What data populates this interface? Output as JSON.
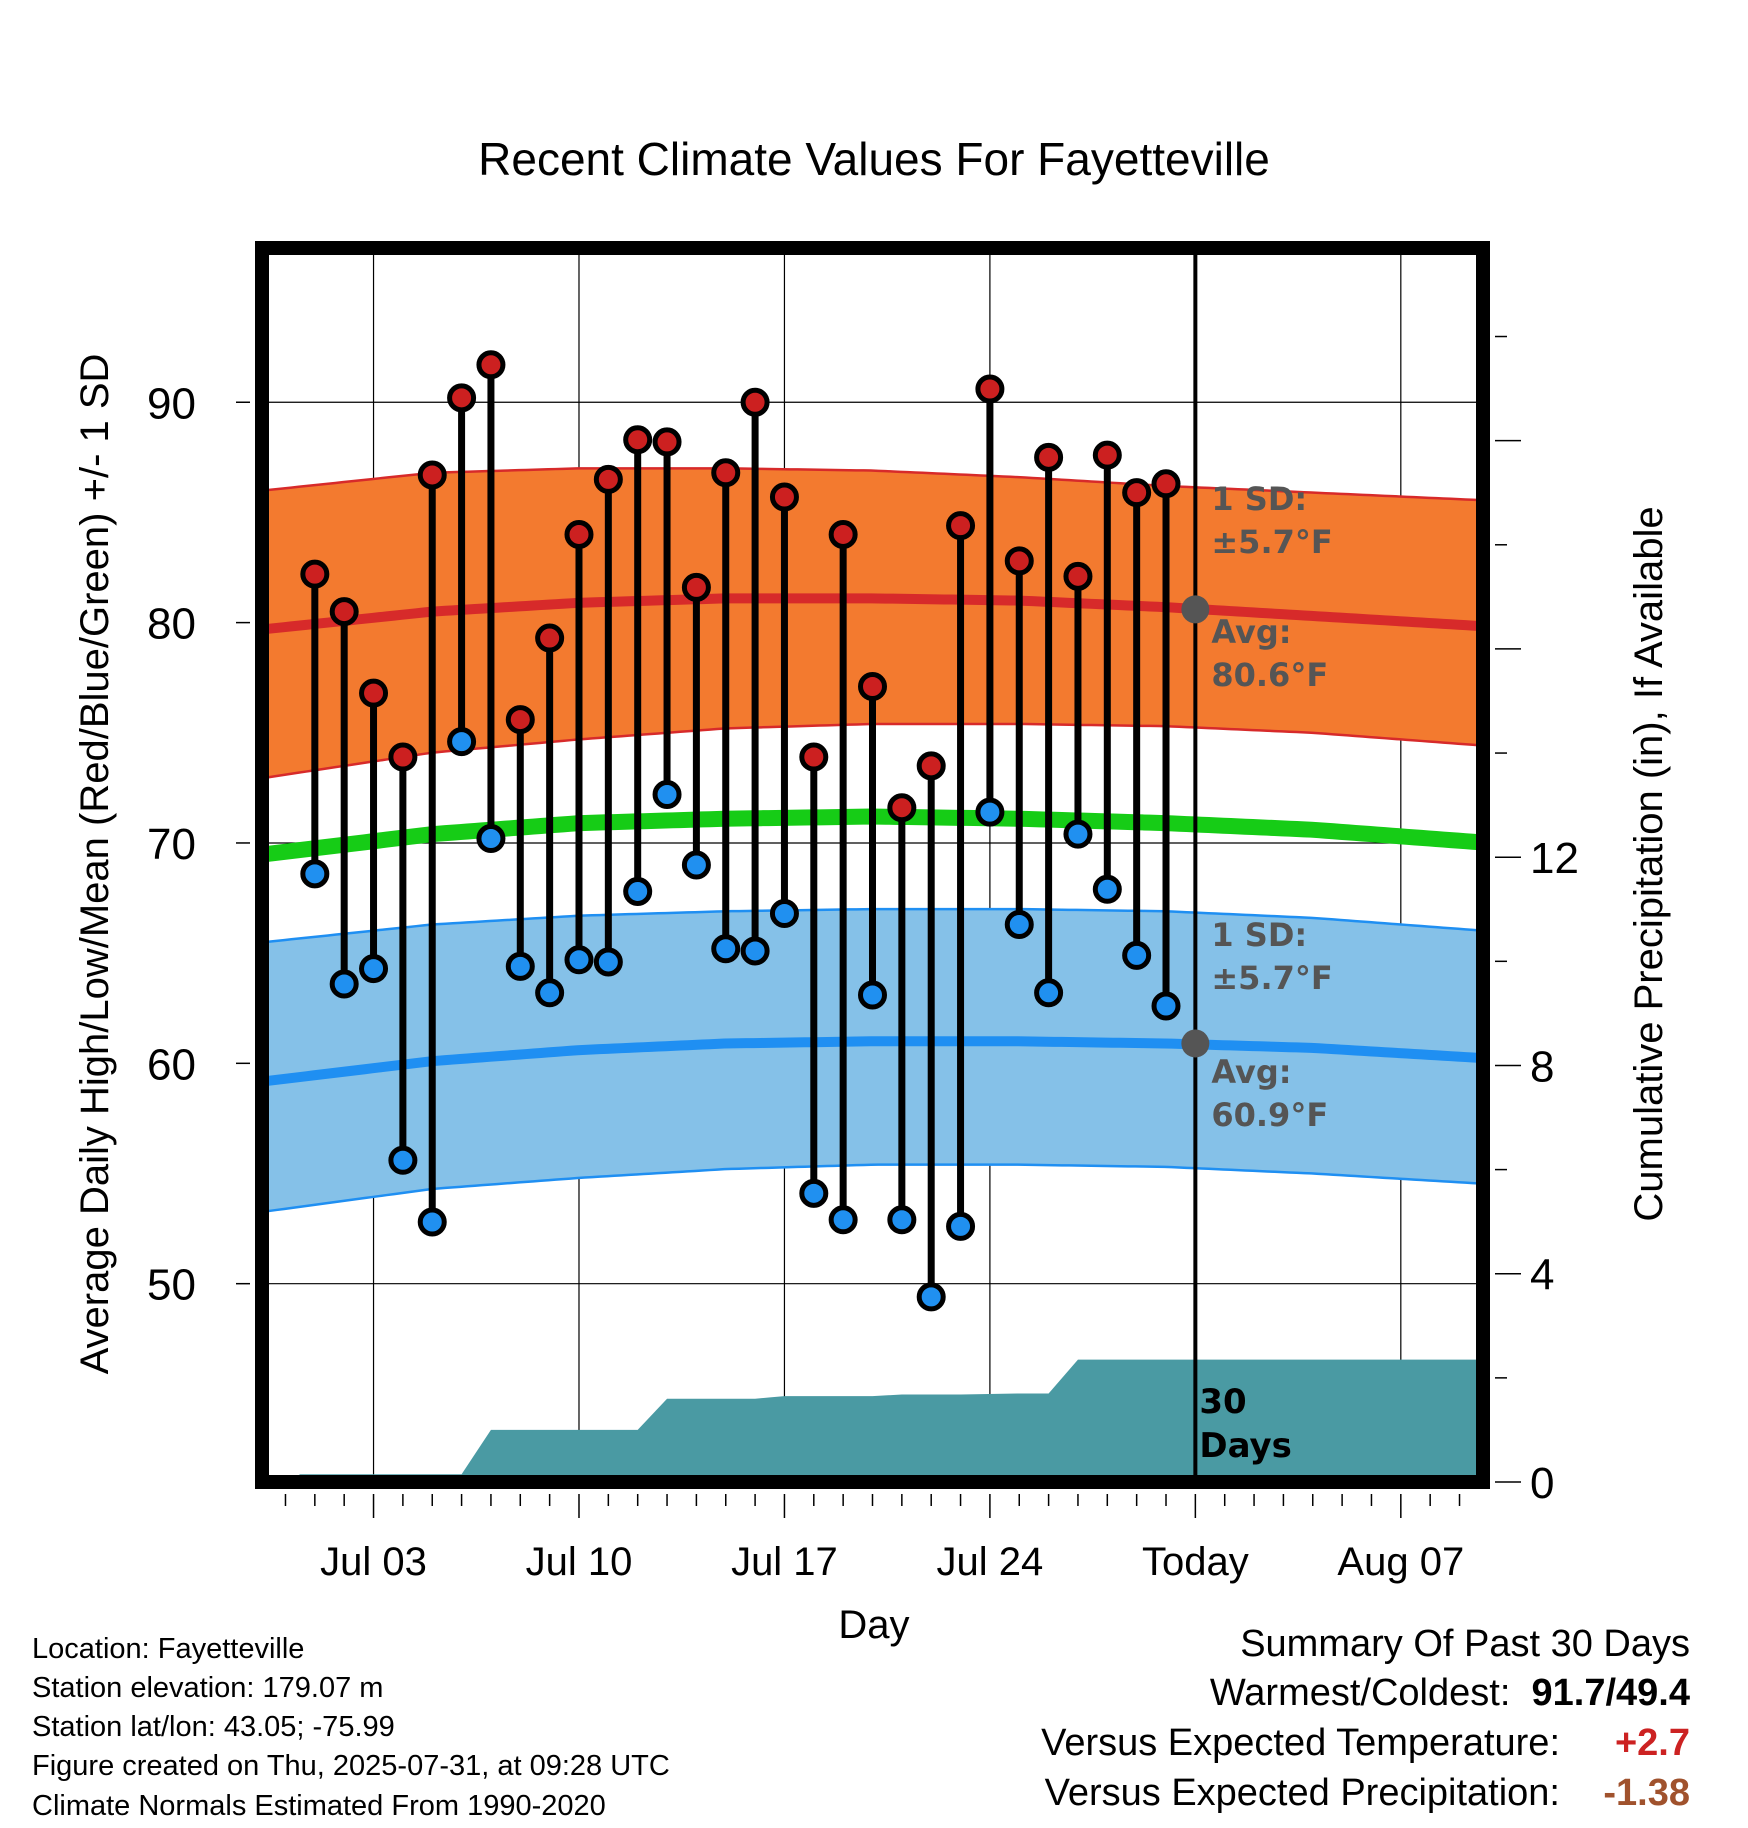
{
  "chart_data": {
    "type": "line",
    "title": "Recent Climate Values For Fayetteville",
    "xlabel": "Day",
    "ylabel": "Average Daily High/Low/Mean (Red/Blue/Green) +/- 1 SD",
    "y2label": "Cumulative Precipitation (in), If Available",
    "ylim": [
      41,
      97
    ],
    "y2lim": [
      0,
      23.7
    ],
    "yticks": [
      50,
      60,
      70,
      80,
      90
    ],
    "y2ticks": [
      0,
      4,
      8,
      12
    ],
    "xlim": [
      -0.8,
      40.8
    ],
    "xticks": [
      {
        "day": 3,
        "label": "Jul 03"
      },
      {
        "day": 10,
        "label": "Jul 10"
      },
      {
        "day": 17,
        "label": "Jul 17"
      },
      {
        "day": 24,
        "label": "Jul 24"
      },
      {
        "day": 31,
        "label": "Today"
      },
      {
        "day": 38,
        "label": "Aug 07"
      }
    ],
    "today_day": 31,
    "series": [
      {
        "name": "High",
        "color": "#cc2020",
        "x": [
          1,
          2,
          3,
          4,
          5,
          6,
          7,
          8,
          9,
          10,
          11,
          12,
          13,
          14,
          15,
          16,
          17,
          18,
          19,
          20,
          21,
          22,
          23,
          24,
          25,
          26,
          27,
          28,
          29,
          30
        ],
        "values": [
          82.2,
          80.5,
          76.8,
          73.9,
          86.7,
          90.2,
          91.7,
          75.6,
          79.3,
          84.0,
          86.5,
          88.3,
          88.2,
          81.6,
          86.8,
          90.0,
          85.7,
          73.9,
          84.0,
          77.1,
          71.6,
          73.5,
          84.4,
          90.6,
          82.8,
          87.5,
          82.1,
          87.6,
          85.9,
          86.3
        ]
      },
      {
        "name": "Low",
        "color": "#2090f0",
        "x": [
          1,
          2,
          3,
          4,
          5,
          6,
          7,
          8,
          9,
          10,
          11,
          12,
          13,
          14,
          15,
          16,
          17,
          18,
          19,
          20,
          21,
          22,
          23,
          24,
          25,
          26,
          27,
          28,
          29,
          30
        ],
        "values": [
          68.6,
          63.6,
          64.3,
          55.6,
          52.8,
          74.6,
          70.2,
          64.4,
          63.2,
          64.7,
          64.6,
          67.8,
          72.2,
          69.0,
          65.2,
          65.1,
          66.8,
          54.1,
          52.9,
          63.1,
          52.9,
          49.4,
          52.6,
          71.4,
          66.3,
          63.2,
          70.4,
          67.9,
          64.9,
          62.6
        ]
      }
    ],
    "normal_high_mean": {
      "x": [
        0,
        5,
        10,
        15,
        20,
        25,
        30,
        35,
        40
      ],
      "values": [
        79.8,
        80.5,
        80.9,
        81.1,
        81.1,
        81.0,
        80.7,
        80.3,
        79.9
      ]
    },
    "normal_high_sd_upper": {
      "x": [
        0,
        5,
        10,
        15,
        20,
        25,
        30,
        35,
        40
      ],
      "values": [
        86.1,
        86.8,
        87.0,
        87.0,
        86.9,
        86.6,
        86.2,
        85.9,
        85.6
      ]
    },
    "normal_high_sd_lower": {
      "x": [
        0,
        5,
        10,
        15,
        20,
        25,
        30,
        35,
        40
      ],
      "values": [
        73.1,
        74.1,
        74.7,
        75.2,
        75.4,
        75.4,
        75.3,
        75.0,
        74.5
      ]
    },
    "normal_mean": {
      "x": [
        0,
        5,
        10,
        15,
        20,
        25,
        30,
        35,
        40
      ],
      "values": [
        69.6,
        70.4,
        70.9,
        71.1,
        71.2,
        71.1,
        70.9,
        70.6,
        70.1
      ]
    },
    "normal_low_mean": {
      "x": [
        0,
        5,
        10,
        15,
        20,
        25,
        30,
        35,
        40
      ],
      "values": [
        59.3,
        60.1,
        60.6,
        60.9,
        61.0,
        61.0,
        60.9,
        60.7,
        60.3
      ]
    },
    "normal_low_sd_upper": {
      "x": [
        0,
        5,
        10,
        15,
        20,
        25,
        30,
        35,
        40
      ],
      "values": [
        65.6,
        66.3,
        66.7,
        66.9,
        67.0,
        67.0,
        66.9,
        66.6,
        66.1
      ]
    },
    "normal_low_sd_lower": {
      "x": [
        0,
        5,
        10,
        15,
        20,
        25,
        30,
        35,
        40
      ],
      "values": [
        53.4,
        54.3,
        54.8,
        55.2,
        55.4,
        55.4,
        55.3,
        55.0,
        54.6
      ]
    },
    "precip_cumulative": {
      "x": [
        0,
        0.5,
        6,
        7,
        12,
        13,
        16,
        17,
        20,
        21,
        23,
        25,
        26,
        27,
        40.8
      ],
      "values": [
        0,
        0.15,
        0.15,
        1.0,
        1.0,
        1.6,
        1.6,
        1.65,
        1.65,
        1.68,
        1.68,
        1.7,
        1.7,
        2.35,
        2.35
      ]
    },
    "colors": {
      "high_band": "#f37a2f",
      "high_line": "#d72a2a",
      "low_band": "#85c1e8",
      "low_line": "#1f8ff2",
      "mean_line": "#16cc16",
      "precip": "#4a9aa3"
    },
    "annotations": {
      "high_sd_label": "1 SD:",
      "high_sd_value": "±5.7°F",
      "high_avg_label": "Avg:",
      "high_avg_value": "80.6°F",
      "low_sd_label": "1 SD:",
      "low_sd_value": "±5.7°F",
      "low_avg_label": "Avg:",
      "low_avg_value": "60.9°F",
      "days_num": "30",
      "days_word": "Days"
    }
  },
  "info": {
    "location": "Location: Fayetteville",
    "elevation": "Station elevation: 179.07 m",
    "latlon": "Station lat/lon: 43.05; -75.99",
    "created": "Figure created on Thu, 2025-07-31, at 09:28 UTC",
    "normals": "Climate Normals Estimated From 1990-2020"
  },
  "summary": {
    "title": "Summary Of Past 30 Days",
    "warm_cold_label": "Warmest/Coldest:",
    "warm_cold_value": "91.7/49.4",
    "temp_label": "Versus Expected Temperature:",
    "temp_value": "+2.7",
    "temp_color": "#cc2222",
    "precip_label": "Versus Expected Precipitation:",
    "precip_value": "-1.38",
    "precip_color": "#a0522d"
  }
}
